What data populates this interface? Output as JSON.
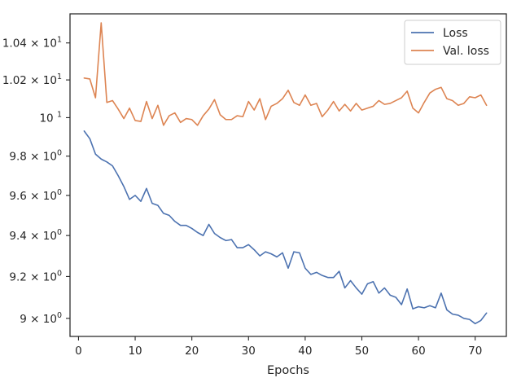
{
  "chart_data": {
    "type": "line",
    "xlabel": "Epochs",
    "ylabel": "",
    "xlim": [
      -1.5,
      75.5
    ],
    "ylim": [
      8.915,
      10.56
    ],
    "y_scale": "log",
    "grid": false,
    "legend_position": "top-right",
    "x_ticks": [
      0,
      10,
      20,
      30,
      40,
      50,
      60,
      70
    ],
    "x_tick_labels": [
      "0",
      "10",
      "20",
      "30",
      "40",
      "50",
      "60",
      "70"
    ],
    "y_ticks": [
      9.0,
      9.2,
      9.4,
      9.6,
      9.8,
      10.0,
      10.2,
      10.4
    ],
    "y_tick_labels": [
      {
        "mantissa": "9",
        "exp": "0"
      },
      {
        "mantissa": "9.2",
        "exp": "0"
      },
      {
        "mantissa": "9.4",
        "exp": "0"
      },
      {
        "mantissa": "9.6",
        "exp": "0"
      },
      {
        "mantissa": "9.8",
        "exp": "0"
      },
      {
        "mantissa": "10",
        "exp": "1",
        "plain": true
      },
      {
        "mantissa": "1.02",
        "exp": "1"
      },
      {
        "mantissa": "1.04",
        "exp": "1"
      }
    ],
    "x": [
      1,
      2,
      3,
      4,
      5,
      6,
      7,
      8,
      9,
      10,
      11,
      12,
      13,
      14,
      15,
      16,
      17,
      18,
      19,
      20,
      21,
      22,
      23,
      24,
      25,
      26,
      27,
      28,
      29,
      30,
      31,
      32,
      33,
      34,
      35,
      36,
      37,
      38,
      39,
      40,
      41,
      42,
      43,
      44,
      45,
      46,
      47,
      48,
      49,
      50,
      51,
      52,
      53,
      54,
      55,
      56,
      57,
      58,
      59,
      60,
      61,
      62,
      63,
      64,
      65,
      66,
      67,
      68,
      69,
      70,
      71,
      72
    ],
    "series": [
      {
        "name": "Loss",
        "color": "#4c72b0",
        "values": [
          9.93,
          9.89,
          9.81,
          9.785,
          9.77,
          9.75,
          9.7,
          9.645,
          9.58,
          9.6,
          9.57,
          9.635,
          9.56,
          9.55,
          9.51,
          9.5,
          9.47,
          9.45,
          9.45,
          9.435,
          9.415,
          9.4,
          9.455,
          9.41,
          9.39,
          9.375,
          9.38,
          9.34,
          9.34,
          9.355,
          9.33,
          9.3,
          9.32,
          9.31,
          9.295,
          9.315,
          9.24,
          9.32,
          9.315,
          9.24,
          9.21,
          9.22,
          9.205,
          9.195,
          9.195,
          9.225,
          9.145,
          9.18,
          9.145,
          9.115,
          9.165,
          9.175,
          9.12,
          9.145,
          9.11,
          9.1,
          9.065,
          9.14,
          9.045,
          9.055,
          9.05,
          9.06,
          9.05,
          9.12,
          9.04,
          9.02,
          9.015,
          9.0,
          8.995,
          8.975,
          8.99,
          9.025
        ]
      },
      {
        "name": "Val. loss",
        "color": "#dd8452",
        "values": [
          10.21,
          10.205,
          10.105,
          10.51,
          10.08,
          10.09,
          10.045,
          9.995,
          10.05,
          9.985,
          9.98,
          10.085,
          9.995,
          10.065,
          9.96,
          10.01,
          10.025,
          9.975,
          9.995,
          9.99,
          9.96,
          10.01,
          10.045,
          10.095,
          10.015,
          9.99,
          9.99,
          10.01,
          10.005,
          10.085,
          10.04,
          10.1,
          9.99,
          10.06,
          10.075,
          10.1,
          10.145,
          10.08,
          10.065,
          10.12,
          10.065,
          10.075,
          10.005,
          10.04,
          10.085,
          10.035,
          10.07,
          10.035,
          10.075,
          10.04,
          10.05,
          10.06,
          10.09,
          10.07,
          10.075,
          10.09,
          10.105,
          10.14,
          10.05,
          10.025,
          10.08,
          10.13,
          10.15,
          10.16,
          10.1,
          10.09,
          10.065,
          10.075,
          10.11,
          10.105,
          10.12,
          10.065
        ]
      }
    ]
  }
}
